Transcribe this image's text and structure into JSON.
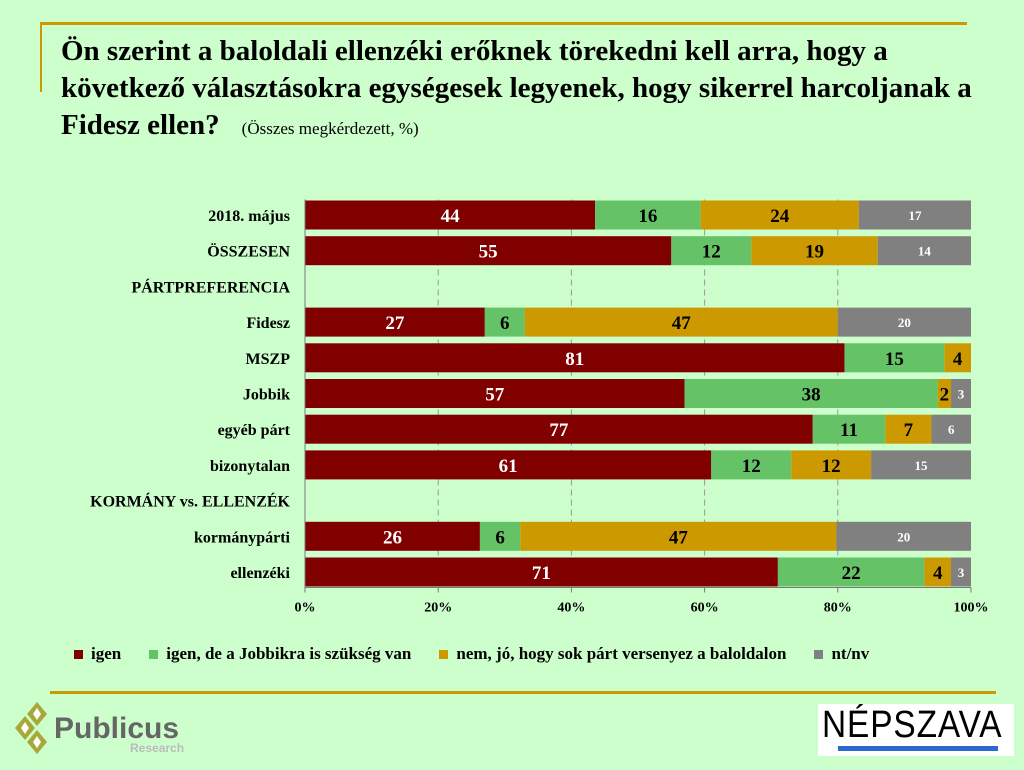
{
  "title": "Ön szerint a baloldali ellenzéki erőknek törekedni kell arra, hogy a következő választásokra egységesek legyenek, hogy sikerrel harcoljanak a Fidesz ellen?",
  "subtitle": "(Összes megkérdezett, %)",
  "logos": {
    "left": "Publicus Research",
    "right": "NÉPSZAVA"
  },
  "chart_data": {
    "type": "bar",
    "orientation": "horizontal-stacked-100",
    "categories": [
      "2018. május",
      "ÖSSZESEN",
      "PÁRTPREFERENCIA",
      "Fidesz",
      "MSZP",
      "Jobbik",
      "egyéb párt",
      "bizonytalan",
      "KORMÁNY vs. ELLENZÉK",
      "kormánypárti",
      "ellenzéki"
    ],
    "series": [
      {
        "name": "igen",
        "color": "#800000",
        "values": [
          44,
          55,
          null,
          27,
          81,
          57,
          77,
          61,
          null,
          26,
          71
        ]
      },
      {
        "name": "igen, de a Jobbikra is szükség van",
        "color": "#66c266",
        "values": [
          16,
          12,
          null,
          6,
          15,
          38,
          11,
          12,
          null,
          6,
          22
        ]
      },
      {
        "name": "nem, jó, hogy sok párt versenyez a baloldalon",
        "color": "#cc9900",
        "values": [
          24,
          19,
          null,
          47,
          4,
          2,
          7,
          12,
          null,
          47,
          4
        ]
      },
      {
        "name": "nt/nv",
        "color": "#808080",
        "values": [
          17,
          14,
          null,
          20,
          null,
          3,
          6,
          15,
          null,
          20,
          3
        ]
      }
    ],
    "xticks": [
      "0%",
      "20%",
      "40%",
      "60%",
      "80%",
      "100%"
    ],
    "xlim": [
      0,
      100
    ],
    "grid": "vertical dashed",
    "legend": "bottom"
  }
}
